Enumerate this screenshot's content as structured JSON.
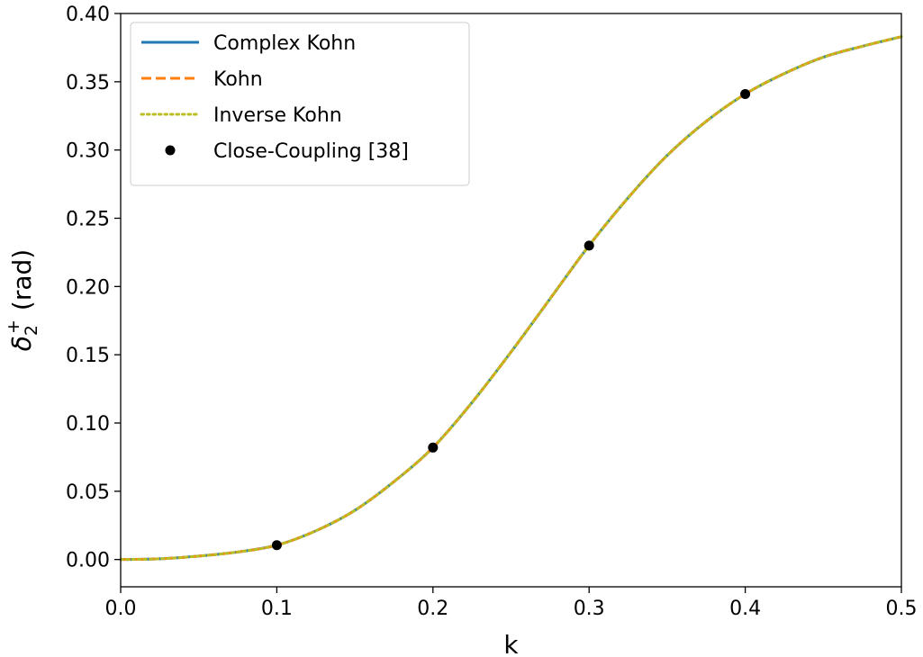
{
  "chart_data": {
    "type": "line",
    "title": "",
    "xlabel": "k",
    "ylabel": {
      "symbol": "δ",
      "subscript": "2",
      "superscript": "+",
      "unit": "(rad)"
    },
    "xlim": [
      0.0,
      0.5
    ],
    "ylim": [
      -0.02,
      0.4
    ],
    "xticks": [
      "0.0",
      "0.1",
      "0.2",
      "0.3",
      "0.4",
      "0.5"
    ],
    "yticks": [
      "0.00",
      "0.05",
      "0.10",
      "0.15",
      "0.20",
      "0.25",
      "0.30",
      "0.35",
      "0.40"
    ],
    "grid": false,
    "legend_position": "top-left",
    "curve": {
      "x": [
        0.0,
        0.025,
        0.05,
        0.075,
        0.1,
        0.125,
        0.15,
        0.175,
        0.2,
        0.225,
        0.25,
        0.275,
        0.3,
        0.325,
        0.35,
        0.375,
        0.4,
        0.425,
        0.45,
        0.475,
        0.5
      ],
      "y": [
        0.0,
        0.0005,
        0.0025,
        0.0055,
        0.0105,
        0.021,
        0.036,
        0.057,
        0.082,
        0.115,
        0.152,
        0.191,
        0.23,
        0.265,
        0.296,
        0.321,
        0.341,
        0.356,
        0.368,
        0.376,
        0.383
      ]
    },
    "series": [
      {
        "name": "Complex Kohn",
        "style": "solid",
        "color": "#1f77b4"
      },
      {
        "name": "Kohn",
        "style": "dashed",
        "color": "#ff7f0e"
      },
      {
        "name": "Inverse Kohn",
        "style": "dotted",
        "color": "#bcbd22"
      },
      {
        "name": "Close-Coupling [38]",
        "style": "markers",
        "color": "#000000",
        "x": [
          0.1,
          0.2,
          0.3,
          0.4
        ],
        "y": [
          0.0105,
          0.082,
          0.23,
          0.341
        ]
      }
    ]
  }
}
